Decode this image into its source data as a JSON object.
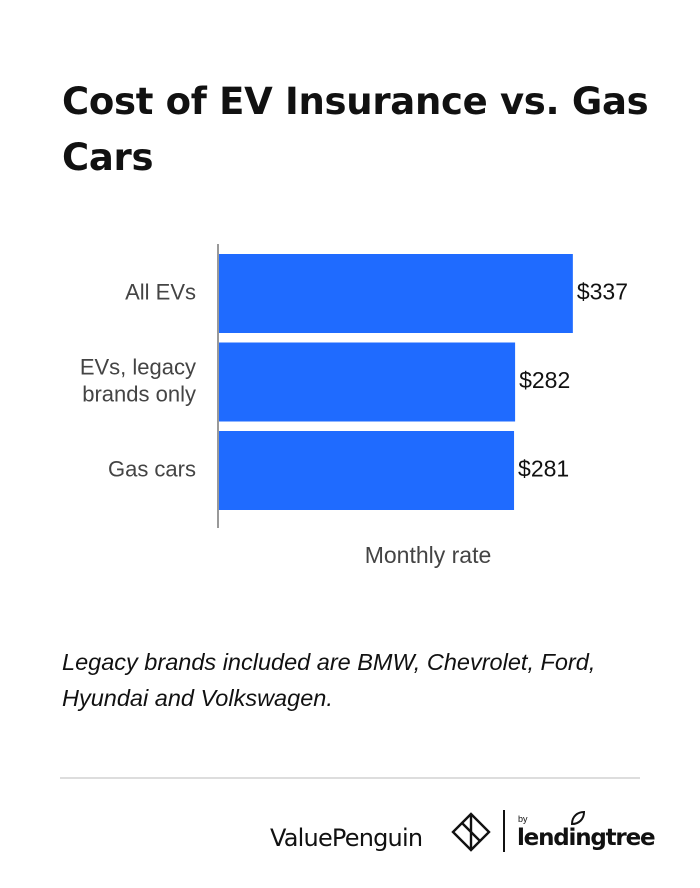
{
  "title": "Cost of EV Insurance vs. Gas Cars",
  "note": "Legacy brands included are BMW, Chevrolet, Ford, Hyundai and Volkswagen.",
  "colors": {
    "bar": "#1F6BFF",
    "axis": "#999999",
    "text": "#111111",
    "label": "#444444"
  },
  "footer": {
    "brand_left": "ValuePenguin",
    "brand_by": "by",
    "brand_right": "lendingtree",
    "logo_icon": "diamond-logo-icon",
    "leaf_icon": "leaf-icon"
  },
  "chart_data": {
    "type": "bar",
    "orientation": "horizontal",
    "categories": [
      [
        "All EVs"
      ],
      [
        "EVs, legacy",
        "brands only"
      ],
      [
        "Gas cars"
      ]
    ],
    "values": [
      337,
      282,
      281
    ],
    "value_labels": [
      "$337",
      "$282",
      "$281"
    ],
    "xlabel": "Monthly rate",
    "ylabel": "",
    "xlim": [
      0,
      340
    ],
    "grid": false,
    "legend": "none"
  }
}
